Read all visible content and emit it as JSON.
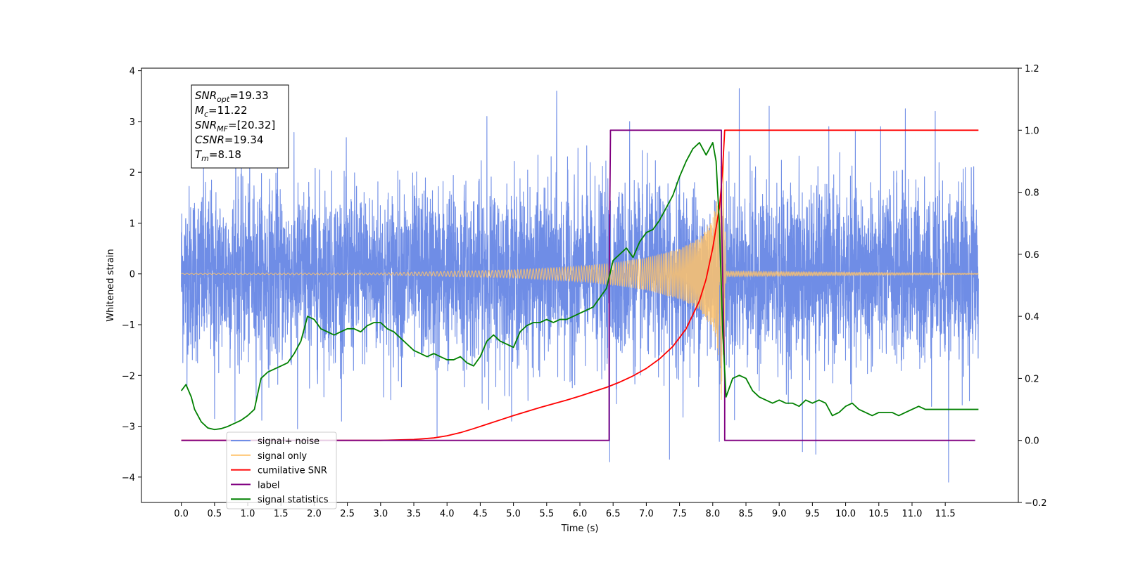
{
  "chart_data": {
    "type": "line",
    "xlabel": "Time (s)",
    "ylabel": "Whitened strain",
    "xlim": [
      -0.6,
      12.6
    ],
    "ylim": [
      -4.5,
      4.05
    ],
    "ylim_right": [
      -0.2,
      1.2
    ],
    "x_ticks": [
      "0.0",
      "0.5",
      "1.0",
      "1.5",
      "2.0",
      "2.5",
      "3.0",
      "3.5",
      "4.0",
      "4.5",
      "5.0",
      "5.5",
      "6.0",
      "6.5",
      "7.0",
      "7.5",
      "8.0",
      "8.5",
      "9.0",
      "9.5",
      "10.0",
      "10.5",
      "11.0",
      "11.5"
    ],
    "y_ticks_left": [
      "4",
      "3",
      "2",
      "1",
      "0",
      "−1",
      "−2",
      "−3",
      "−4"
    ],
    "y_ticks_right": [
      "1.2",
      "1.0",
      "0.8",
      "0.6",
      "0.4",
      "0.2",
      "0.0",
      "−0.2"
    ],
    "grid": false,
    "legend_position": "lower-left",
    "annotation": {
      "lines": [
        {
          "base": "SNR",
          "sub": "opt",
          "value": "=19.33"
        },
        {
          "base": "M",
          "sub": "c",
          "value": "=11.22"
        },
        {
          "base": "SNR",
          "sub": "MF",
          "value": "=[20.32]"
        },
        {
          "base": "CSNR",
          "sub": "",
          "value": "=19.34"
        },
        {
          "base": "T",
          "sub": "m",
          "value": "=8.18"
        }
      ]
    },
    "series": [
      {
        "name": "signal+ noise",
        "color": "#6f8de6",
        "axis": "left",
        "kind": "noise",
        "x_range": [
          0.0,
          12.0
        ],
        "std": 1.0,
        "extremes": [
          [
            0.82,
            3.3
          ],
          [
            1.45,
            2.95
          ],
          [
            4.6,
            3.1
          ],
          [
            5.65,
            3.6
          ],
          [
            6.75,
            3.0
          ],
          [
            8.4,
            3.65
          ],
          [
            8.85,
            3.3
          ],
          [
            10.9,
            3.25
          ],
          [
            11.35,
            3.2
          ],
          [
            6.45,
            -3.7
          ],
          [
            7.35,
            -3.65
          ],
          [
            9.35,
            -3.5
          ],
          [
            9.55,
            -3.55
          ],
          [
            11.55,
            -4.1
          ],
          [
            3.85,
            -3.2
          ],
          [
            1.75,
            -3.05
          ],
          [
            0.5,
            -2.85
          ],
          [
            8.1,
            -3.3
          ]
        ]
      },
      {
        "name": "signal only",
        "color": "#ffc36b",
        "axis": "left",
        "kind": "chirp",
        "envelope": [
          [
            0.0,
            0.01
          ],
          [
            3.0,
            0.02
          ],
          [
            5.0,
            0.08
          ],
          [
            6.0,
            0.15
          ],
          [
            6.5,
            0.22
          ],
          [
            7.0,
            0.32
          ],
          [
            7.5,
            0.5
          ],
          [
            7.8,
            0.7
          ],
          [
            8.0,
            1.1
          ],
          [
            8.1,
            1.7
          ],
          [
            8.15,
            3.1
          ],
          [
            8.2,
            0.05
          ],
          [
            12.0,
            0.01
          ]
        ]
      },
      {
        "name": "cumilative SNR",
        "color": "#ff0000",
        "axis": "right",
        "x": [
          0.0,
          3.0,
          3.5,
          3.8,
          4.0,
          4.2,
          4.4,
          4.6,
          4.8,
          5.0,
          5.2,
          5.4,
          5.6,
          5.8,
          6.0,
          6.2,
          6.4,
          6.6,
          6.8,
          7.0,
          7.2,
          7.4,
          7.6,
          7.8,
          7.9,
          8.0,
          8.1,
          8.13,
          8.15,
          8.16,
          8.18,
          12.0
        ],
        "y": [
          0.0,
          0.0,
          0.003,
          0.008,
          0.015,
          0.025,
          0.038,
          0.052,
          0.066,
          0.08,
          0.093,
          0.106,
          0.118,
          0.13,
          0.143,
          0.157,
          0.171,
          0.188,
          0.208,
          0.232,
          0.263,
          0.303,
          0.36,
          0.45,
          0.52,
          0.62,
          0.75,
          0.82,
          0.88,
          0.92,
          1.0,
          1.0
        ]
      },
      {
        "name": "label",
        "color": "#800080",
        "axis": "right",
        "x": [
          0.0,
          6.44,
          6.44,
          6.46,
          6.46,
          8.13,
          8.13,
          8.18,
          8.18,
          11.95
        ],
        "y": [
          0.0,
          0.0,
          0.5,
          0.98,
          1.0,
          1.0,
          0.75,
          0.2,
          0.0,
          0.0
        ]
      },
      {
        "name": "signal statistics",
        "color": "#008000",
        "axis": "right",
        "x": [
          0.0,
          0.07,
          0.15,
          0.2,
          0.3,
          0.4,
          0.5,
          0.6,
          0.7,
          0.8,
          0.9,
          1.0,
          1.1,
          1.2,
          1.3,
          1.4,
          1.5,
          1.6,
          1.7,
          1.8,
          1.9,
          2.0,
          2.1,
          2.2,
          2.3,
          2.4,
          2.5,
          2.6,
          2.7,
          2.8,
          2.9,
          3.0,
          3.1,
          3.2,
          3.3,
          3.4,
          3.5,
          3.6,
          3.7,
          3.8,
          3.9,
          4.0,
          4.1,
          4.2,
          4.3,
          4.4,
          4.5,
          4.6,
          4.7,
          4.8,
          4.9,
          5.0,
          5.1,
          5.2,
          5.3,
          5.4,
          5.5,
          5.6,
          5.7,
          5.8,
          5.9,
          6.0,
          6.1,
          6.2,
          6.3,
          6.4,
          6.5,
          6.6,
          6.7,
          6.8,
          6.9,
          7.0,
          7.1,
          7.2,
          7.3,
          7.4,
          7.5,
          7.6,
          7.7,
          7.8,
          7.9,
          8.0,
          8.05,
          8.1,
          8.15,
          8.2,
          8.3,
          8.4,
          8.5,
          8.6,
          8.7,
          8.8,
          8.9,
          9.0,
          9.1,
          9.2,
          9.3,
          9.4,
          9.5,
          9.6,
          9.7,
          9.8,
          9.9,
          10.0,
          10.1,
          10.2,
          10.3,
          10.4,
          10.5,
          10.6,
          10.7,
          10.8,
          10.9,
          11.0,
          11.1,
          11.2,
          11.3,
          11.4,
          11.5,
          11.6,
          11.7,
          11.8,
          11.9,
          12.0
        ],
        "y": [
          0.16,
          0.18,
          0.14,
          0.1,
          0.06,
          0.04,
          0.035,
          0.038,
          0.045,
          0.055,
          0.065,
          0.08,
          0.1,
          0.2,
          0.22,
          0.23,
          0.24,
          0.25,
          0.28,
          0.32,
          0.4,
          0.39,
          0.36,
          0.35,
          0.34,
          0.35,
          0.36,
          0.36,
          0.35,
          0.37,
          0.38,
          0.38,
          0.36,
          0.35,
          0.33,
          0.31,
          0.29,
          0.28,
          0.27,
          0.28,
          0.27,
          0.26,
          0.26,
          0.27,
          0.25,
          0.24,
          0.27,
          0.32,
          0.34,
          0.32,
          0.31,
          0.3,
          0.35,
          0.37,
          0.38,
          0.38,
          0.39,
          0.38,
          0.39,
          0.39,
          0.4,
          0.41,
          0.42,
          0.43,
          0.46,
          0.49,
          0.58,
          0.6,
          0.62,
          0.59,
          0.64,
          0.67,
          0.68,
          0.71,
          0.75,
          0.79,
          0.85,
          0.9,
          0.94,
          0.96,
          0.92,
          0.96,
          0.9,
          0.7,
          0.35,
          0.14,
          0.2,
          0.21,
          0.2,
          0.16,
          0.14,
          0.13,
          0.12,
          0.13,
          0.12,
          0.12,
          0.11,
          0.13,
          0.12,
          0.13,
          0.12,
          0.08,
          0.09,
          0.11,
          0.12,
          0.1,
          0.09,
          0.08,
          0.09,
          0.09,
          0.09,
          0.08,
          0.09,
          0.1,
          0.11,
          0.1,
          0.1,
          0.1,
          0.1,
          0.1,
          0.1,
          0.1,
          0.1,
          0.1
        ]
      }
    ],
    "legend": [
      {
        "label": "signal+ noise",
        "color": "#6f8de6"
      },
      {
        "label": "signal only",
        "color": "#ffc36b"
      },
      {
        "label": "cumilative SNR",
        "color": "#ff0000"
      },
      {
        "label": "label",
        "color": "#800080"
      },
      {
        "label": "signal statistics",
        "color": "#008000"
      }
    ]
  }
}
